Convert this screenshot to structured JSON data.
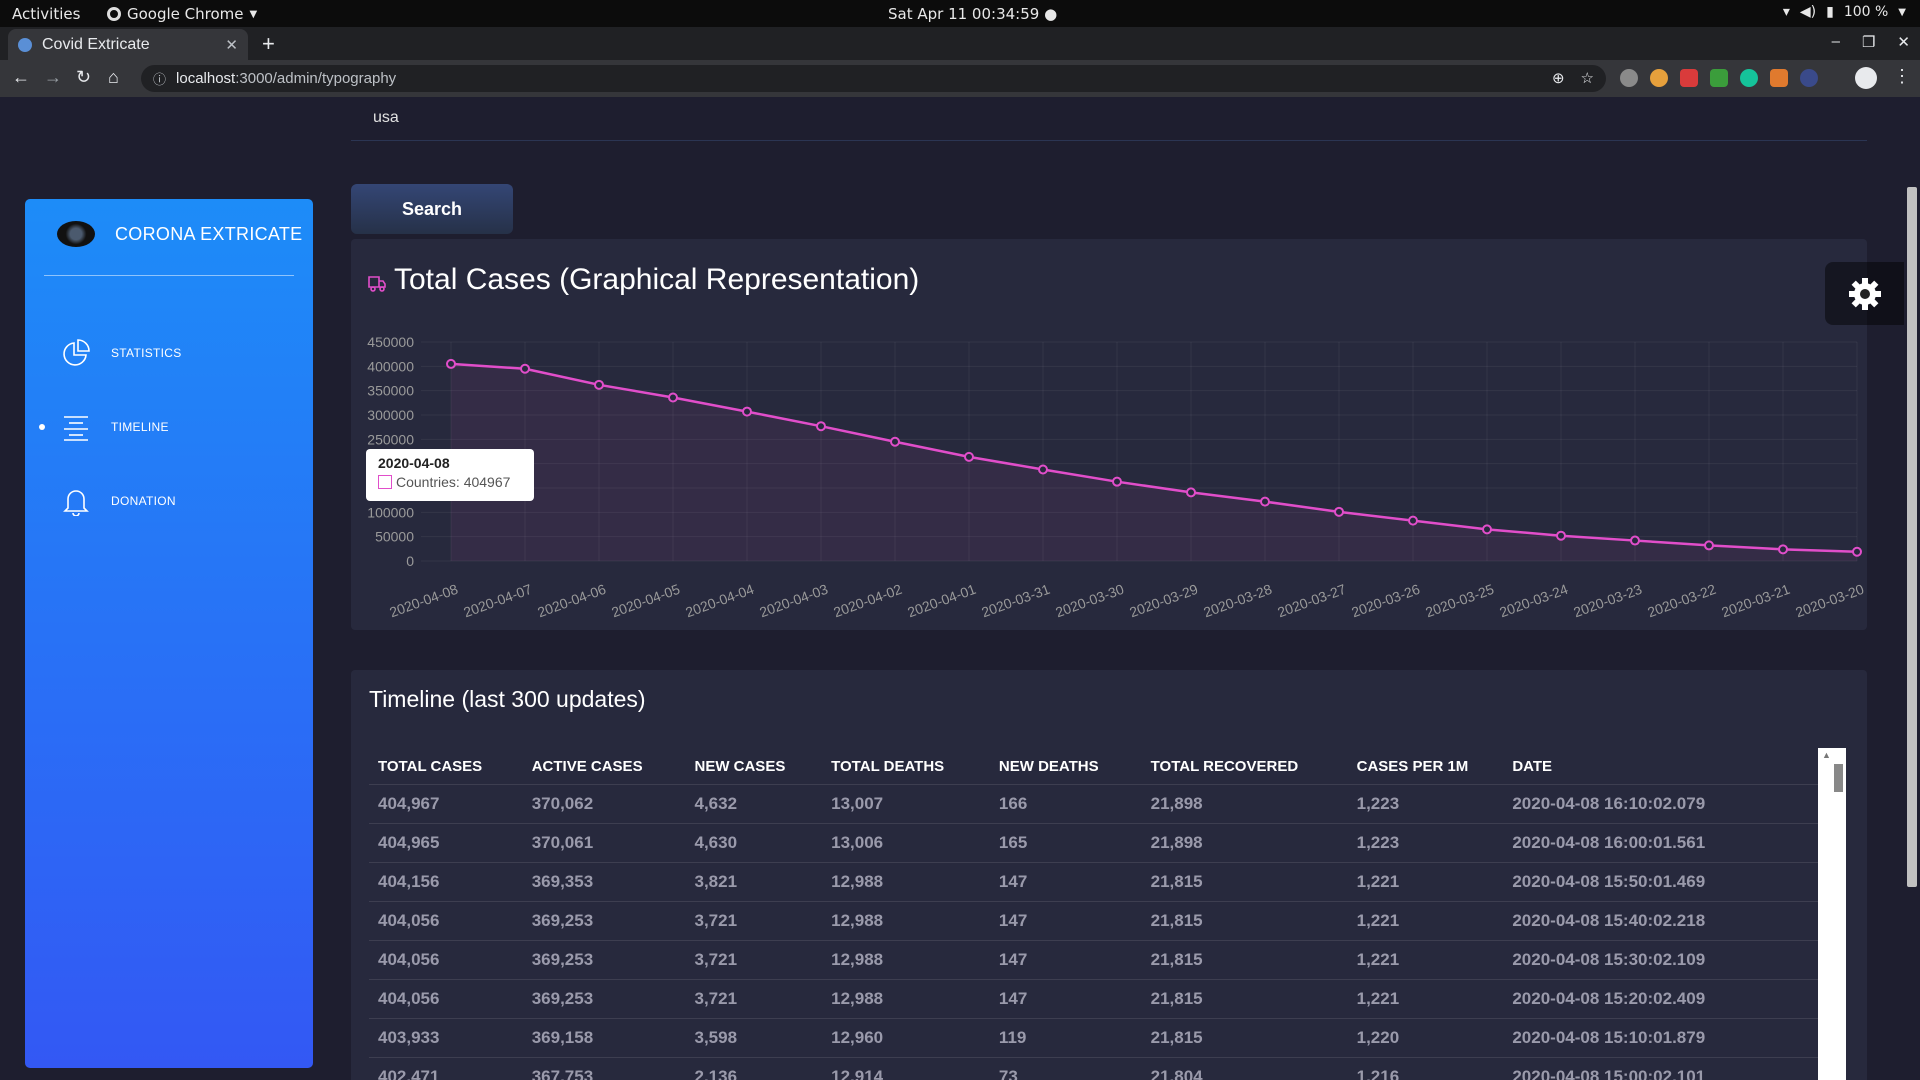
{
  "os_bar": {
    "activities": "Activities",
    "app_name": "Google Chrome",
    "clock": "Sat Apr 11  00:34:59",
    "battery": "100 %"
  },
  "browser": {
    "tab_title": "Covid Extricate",
    "url_host": "localhost",
    "url_path": ":3000/admin/typography"
  },
  "search": {
    "value": "usa",
    "button_label": "Search"
  },
  "sidebar": {
    "brand": "CORONA EXTRICATE",
    "items": [
      {
        "label": "STATISTICS",
        "icon": "pie-chart-icon"
      },
      {
        "label": "TIMELINE",
        "icon": "align-center-icon",
        "active": true
      },
      {
        "label": "DONATION",
        "icon": "bell-icon"
      }
    ]
  },
  "chart_card": {
    "title": "Total Cases (Graphical Representation)",
    "tooltip_title": "2020-04-08",
    "tooltip_value": "Countries: 404967"
  },
  "chart_data": {
    "type": "line",
    "title": "Total Cases (Graphical Representation)",
    "x": [
      "2020-04-08",
      "2020-04-07",
      "2020-04-06",
      "2020-04-05",
      "2020-04-04",
      "2020-04-03",
      "2020-04-02",
      "2020-04-01",
      "2020-03-31",
      "2020-03-30",
      "2020-03-29",
      "2020-03-28",
      "2020-03-27",
      "2020-03-26",
      "2020-03-25",
      "2020-03-24",
      "2020-03-23",
      "2020-03-22",
      "2020-03-21",
      "2020-03-20"
    ],
    "series": [
      {
        "name": "Countries",
        "color": "#e14eca",
        "values": [
          404967,
          395000,
          362000,
          336000,
          307000,
          277000,
          245000,
          214000,
          188000,
          163000,
          141000,
          122000,
          101000,
          83000,
          65000,
          52000,
          42000,
          32000,
          24000,
          19000
        ]
      }
    ],
    "yticks": [
      0,
      50000,
      100000,
      150000,
      200000,
      250000,
      300000,
      350000,
      400000,
      450000
    ],
    "ylim": [
      0,
      450000
    ],
    "grid": true
  },
  "timeline": {
    "title": "Timeline (last 300 updates)",
    "headers": [
      "TOTAL CASES",
      "ACTIVE CASES",
      "NEW CASES",
      "TOTAL DEATHS",
      "NEW DEATHS",
      "TOTAL RECOVERED",
      "CASES PER 1M",
      "DATE"
    ],
    "rows": [
      [
        "404,967",
        "370,062",
        "4,632",
        "13,007",
        "166",
        "21,898",
        "1,223",
        "2020-04-08 16:10:02.079"
      ],
      [
        "404,965",
        "370,061",
        "4,630",
        "13,006",
        "165",
        "21,898",
        "1,223",
        "2020-04-08 16:00:01.561"
      ],
      [
        "404,156",
        "369,353",
        "3,821",
        "12,988",
        "147",
        "21,815",
        "1,221",
        "2020-04-08 15:50:01.469"
      ],
      [
        "404,056",
        "369,253",
        "3,721",
        "12,988",
        "147",
        "21,815",
        "1,221",
        "2020-04-08 15:40:02.218"
      ],
      [
        "404,056",
        "369,253",
        "3,721",
        "12,988",
        "147",
        "21,815",
        "1,221",
        "2020-04-08 15:30:02.109"
      ],
      [
        "404,056",
        "369,253",
        "3,721",
        "12,988",
        "147",
        "21,815",
        "1,221",
        "2020-04-08 15:20:02.409"
      ],
      [
        "403,933",
        "369,158",
        "3,598",
        "12,960",
        "119",
        "21,815",
        "1,220",
        "2020-04-08 15:10:01.879"
      ],
      [
        "402,471",
        "367,753",
        "2,136",
        "12,914",
        "73",
        "21,804",
        "1,216",
        "2020-04-08 15:00:02.101"
      ]
    ]
  }
}
